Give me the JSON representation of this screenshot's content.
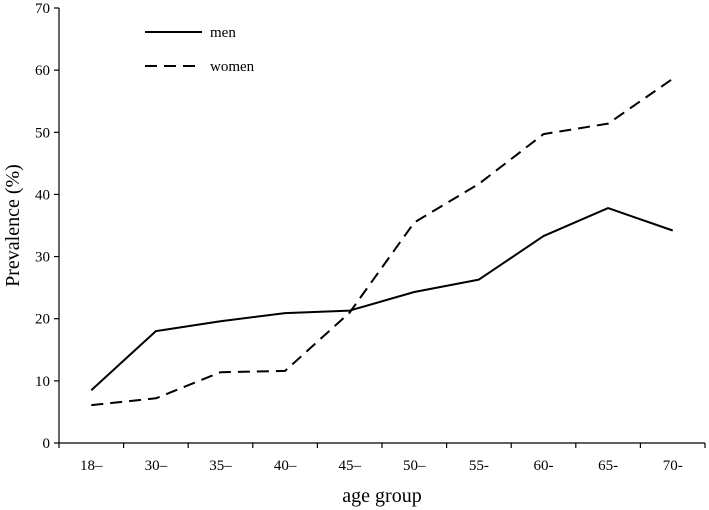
{
  "chart_data": {
    "type": "line",
    "title": "",
    "xlabel": "age group",
    "ylabel": "Prevalence (%)",
    "categories": [
      "18–",
      "30–",
      "35–",
      "40–",
      "45–",
      "50–",
      "55-",
      "60-",
      "65-",
      "70-"
    ],
    "ylim": [
      0,
      70
    ],
    "yticks": [
      0,
      10,
      20,
      30,
      40,
      50,
      60,
      70
    ],
    "grid": false,
    "legend_position": "top-left",
    "series": [
      {
        "name": "men",
        "style": "solid",
        "color": "#000000",
        "values": [
          8.5,
          18.0,
          19.6,
          20.9,
          21.3,
          24.3,
          26.3,
          33.3,
          37.8,
          34.2
        ]
      },
      {
        "name": "women",
        "style": "dashed",
        "color": "#000000",
        "values": [
          6.1,
          7.2,
          11.4,
          11.6,
          21.0,
          35.5,
          41.7,
          49.7,
          51.4,
          58.6
        ]
      }
    ]
  }
}
